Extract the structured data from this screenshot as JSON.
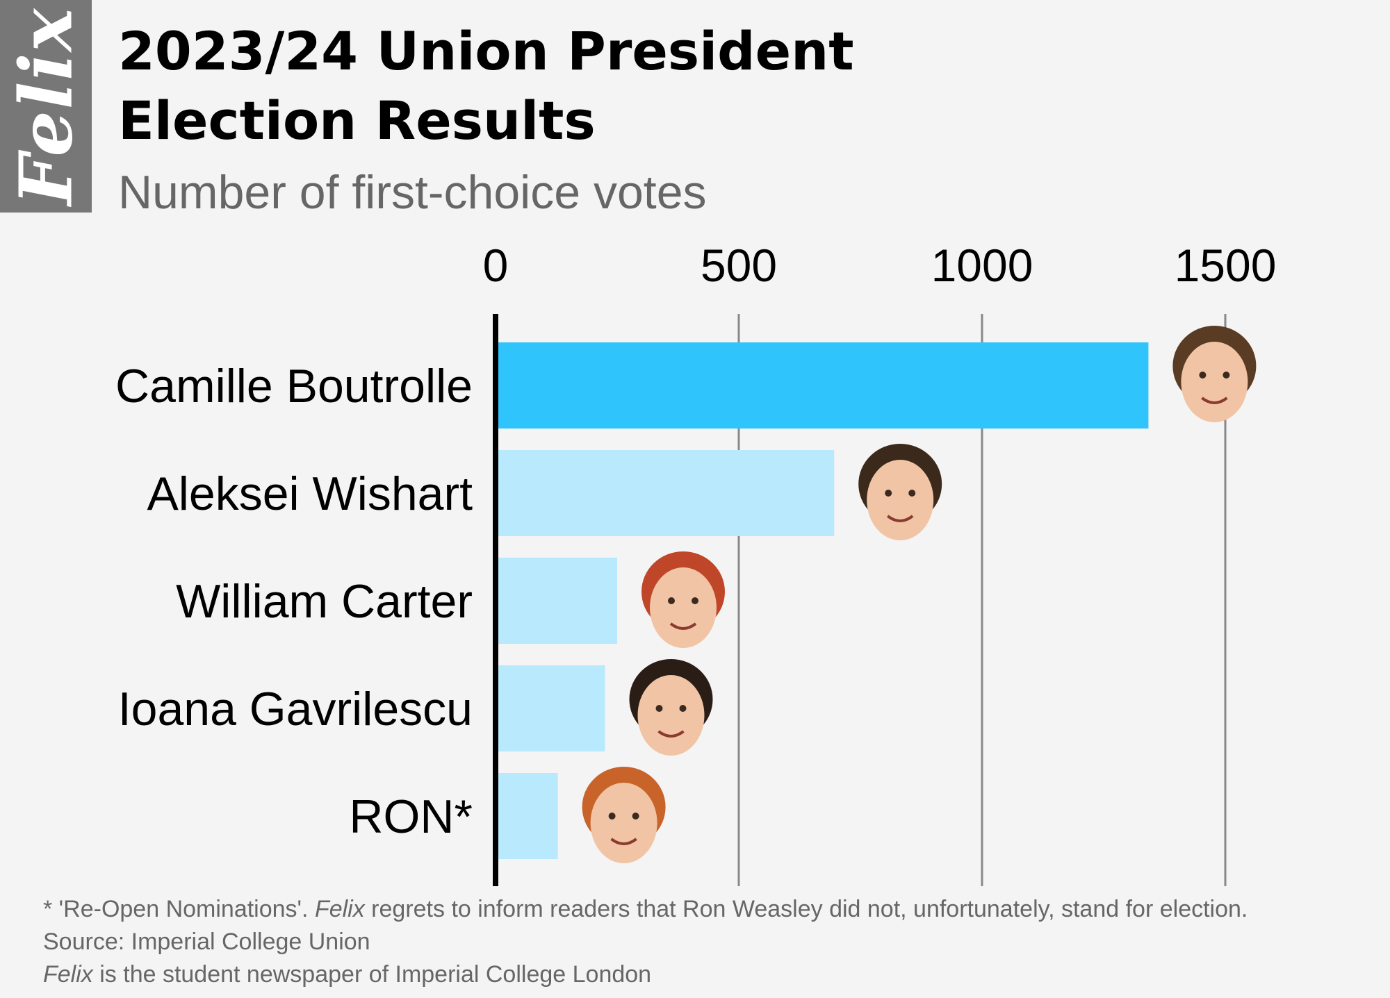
{
  "brand": {
    "logo_text": "Felix",
    "logo_color": "#777777"
  },
  "header": {
    "title_line1": "2023/24 Union President",
    "title_line2": "Election Results",
    "subtitle": "Number of first-choice votes"
  },
  "chart_data": {
    "type": "bar",
    "orientation": "horizontal",
    "categories": [
      "Camille Boutrolle",
      "Aleksei Wishart",
      "William Carter",
      "Ioana Gavrilescu",
      "RON*"
    ],
    "values": [
      1342,
      696,
      250,
      225,
      128
    ],
    "xlim": [
      0,
      1500
    ],
    "xticks": [
      0,
      500,
      1000,
      1500
    ],
    "grid": true,
    "axis_position": "top",
    "colors": {
      "winner": "#30c4fd",
      "others": "#b8e9fc",
      "grid": "#888888",
      "axis": "#000000"
    },
    "candidate_photos": [
      "face-camille",
      "face-aleksei",
      "face-william",
      "face-ioana",
      "face-ron"
    ]
  },
  "footnotes": {
    "note_prefix": "* 'Re-Open Nominations'. ",
    "note_italic": "Felix",
    "note_suffix": " regrets to inform readers that Ron Weasley did not, unfortunately, stand for election.",
    "source": "Source: Imperial College Union",
    "credit_italic": "Felix",
    "credit_suffix": " is the student newspaper of Imperial College London"
  }
}
